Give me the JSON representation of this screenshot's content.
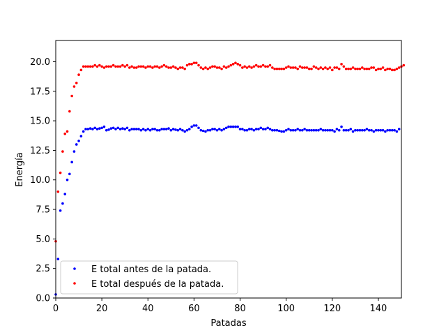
{
  "chart_data": {
    "type": "scatter",
    "xlabel": "Patadas",
    "ylabel": "Energía",
    "xlim": [
      0,
      150
    ],
    "ylim": [
      0,
      21.8
    ],
    "xticks": [
      "0",
      "20",
      "40",
      "60",
      "80",
      "100",
      "120",
      "140"
    ],
    "yticks": [
      "0.0",
      "2.5",
      "5.0",
      "7.5",
      "10.0",
      "12.5",
      "15.0",
      "17.5",
      "20.0"
    ],
    "grid": false,
    "legend_position": "bottom-left",
    "series": [
      {
        "name": "E total antes de la patada.",
        "color": "#0000ff",
        "y": [
          0.3,
          3.3,
          7.4,
          8.0,
          8.8,
          10.0,
          10.5,
          11.5,
          12.4,
          13.0,
          13.3,
          13.7,
          14.1,
          14.3,
          14.3,
          14.35,
          14.3,
          14.4,
          14.3,
          14.35,
          14.4,
          14.5,
          14.2,
          14.25,
          14.35,
          14.4,
          14.3,
          14.4,
          14.3,
          14.35,
          14.3,
          14.4,
          14.2,
          14.3,
          14.3,
          14.3,
          14.3,
          14.2,
          14.3,
          14.2,
          14.3,
          14.2,
          14.3,
          14.3,
          14.2,
          14.2,
          14.3,
          14.3,
          14.3,
          14.35,
          14.2,
          14.3,
          14.25,
          14.2,
          14.3,
          14.2,
          14.1,
          14.2,
          14.3,
          14.5,
          14.6,
          14.6,
          14.4,
          14.2,
          14.15,
          14.1,
          14.2,
          14.2,
          14.3,
          14.3,
          14.2,
          14.3,
          14.2,
          14.3,
          14.4,
          14.5,
          14.5,
          14.5,
          14.5,
          14.5,
          14.3,
          14.3,
          14.2,
          14.2,
          14.3,
          14.3,
          14.2,
          14.3,
          14.3,
          14.4,
          14.3,
          14.3,
          14.4,
          14.3,
          14.2,
          14.2,
          14.2,
          14.15,
          14.1,
          14.1,
          14.2,
          14.3,
          14.2,
          14.2,
          14.2,
          14.3,
          14.2,
          14.2,
          14.3,
          14.2,
          14.2,
          14.2,
          14.2,
          14.2,
          14.2,
          14.3,
          14.2,
          14.2,
          14.2,
          14.2,
          14.2,
          14.1,
          14.3,
          14.2,
          14.5,
          14.2,
          14.2,
          14.2,
          14.3,
          14.1,
          14.2,
          14.2,
          14.2,
          14.2,
          14.2,
          14.3,
          14.2,
          14.2,
          14.1,
          14.2,
          14.2,
          14.2,
          14.2,
          14.1,
          14.2,
          14.2,
          14.2,
          14.2,
          14.1,
          14.3
        ]
      },
      {
        "name": "E total después de la patada.",
        "color": "#ff0000",
        "y": [
          4.8,
          9.0,
          10.6,
          12.4,
          13.9,
          14.1,
          15.8,
          17.1,
          17.9,
          18.2,
          18.9,
          19.3,
          19.6,
          19.6,
          19.6,
          19.6,
          19.6,
          19.7,
          19.6,
          19.7,
          19.6,
          19.5,
          19.6,
          19.6,
          19.6,
          19.7,
          19.6,
          19.6,
          19.6,
          19.7,
          19.6,
          19.7,
          19.5,
          19.6,
          19.5,
          19.5,
          19.6,
          19.6,
          19.6,
          19.5,
          19.6,
          19.6,
          19.5,
          19.6,
          19.6,
          19.5,
          19.6,
          19.7,
          19.6,
          19.5,
          19.5,
          19.6,
          19.5,
          19.4,
          19.5,
          19.5,
          19.4,
          19.7,
          19.8,
          19.8,
          19.9,
          19.9,
          19.7,
          19.5,
          19.4,
          19.5,
          19.4,
          19.5,
          19.6,
          19.6,
          19.5,
          19.5,
          19.4,
          19.6,
          19.5,
          19.6,
          19.7,
          19.8,
          19.9,
          19.8,
          19.7,
          19.5,
          19.6,
          19.5,
          19.6,
          19.5,
          19.6,
          19.7,
          19.6,
          19.6,
          19.7,
          19.6,
          19.6,
          19.7,
          19.5,
          19.4,
          19.4,
          19.4,
          19.4,
          19.4,
          19.5,
          19.6,
          19.5,
          19.5,
          19.5,
          19.4,
          19.6,
          19.5,
          19.5,
          19.5,
          19.4,
          19.4,
          19.6,
          19.5,
          19.4,
          19.5,
          19.4,
          19.5,
          19.4,
          19.5,
          19.3,
          19.5,
          19.5,
          19.4,
          19.8,
          19.6,
          19.4,
          19.4,
          19.4,
          19.5,
          19.4,
          19.4,
          19.4,
          19.5,
          19.4,
          19.4,
          19.4,
          19.5,
          19.5,
          19.3,
          19.4,
          19.4,
          19.5,
          19.3,
          19.4,
          19.4,
          19.3,
          19.3,
          19.4,
          19.5,
          19.6,
          19.7
        ]
      }
    ]
  }
}
